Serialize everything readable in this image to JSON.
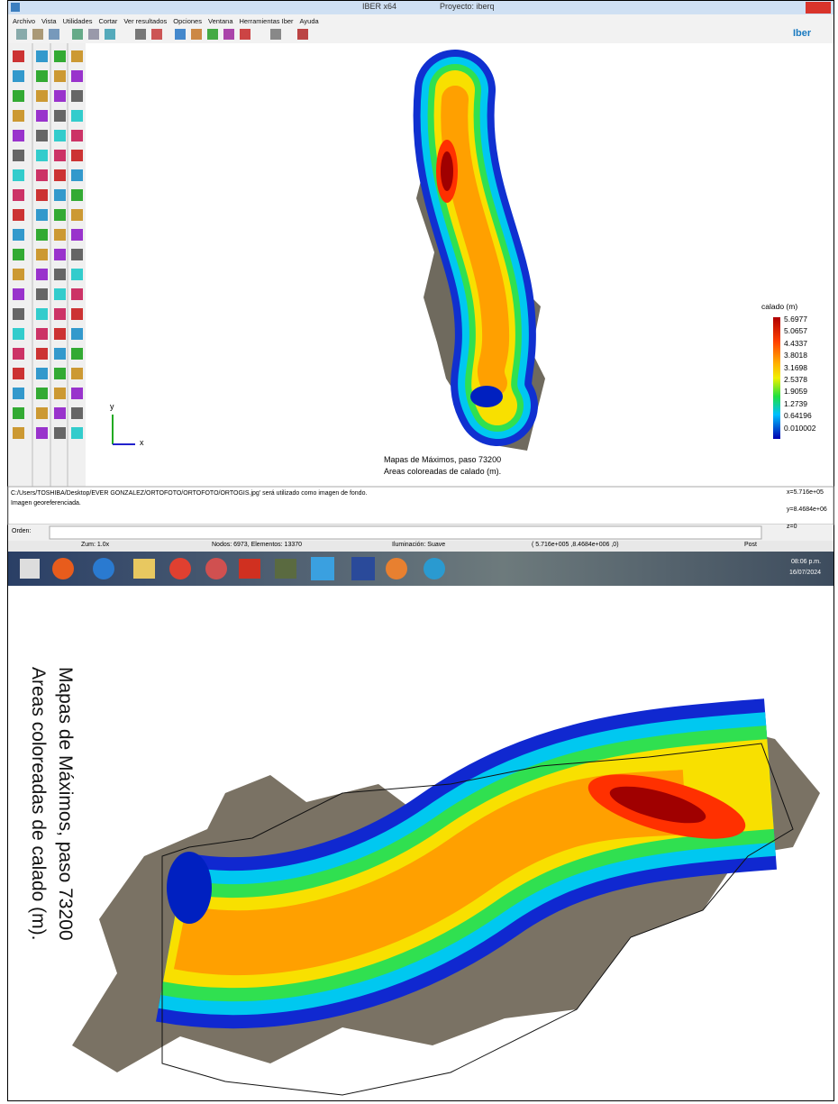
{
  "window": {
    "title": "IBER x64",
    "project": "Proyecto: iberq",
    "logo": "Iber"
  },
  "menu": [
    "Archivo",
    "Vista",
    "Utilidades",
    "Cortar",
    "Ver resultados",
    "Opciones",
    "Ventana",
    "Herramientas Iber",
    "Ayuda"
  ],
  "view": {
    "axis_y": "y",
    "axis_x": "x",
    "caption": [
      "Mapas de Máximos, paso 73200",
      "Areas coloreadas de calado (m)."
    ]
  },
  "legend": {
    "title": "calado (m)",
    "values": [
      "5.6977",
      "5.0657",
      "4.4337",
      "3.8018",
      "3.1698",
      "2.5378",
      "1.9059",
      "1.2739",
      "0.64196",
      "0.010002"
    ]
  },
  "console": [
    "C:/Users/TOSHIBA/Desktop/EVER GONZALEZ/ORTOFOTO/ORTOFOTO/ORTOGIS.jpg' será utilizado como imagen de fondo.",
    "Imagen georeferenciada."
  ],
  "coords": [
    "x=5.716e+05",
    "y=8.4684e+06",
    "z=0"
  ],
  "command_label": "Orden:",
  "status": [
    "Zum: 1.0x",
    "Nodos: 6973, Elementos: 13370",
    "Iluminación: Suave",
    "( 5.716e+005 ,8.4684e+006 ,0)",
    "Post"
  ],
  "clock": {
    "time": "08:06 p.m.",
    "date": "16/07/2024"
  },
  "figure_caption": [
    "Mapas de Máximos, paso 73200",
    "Areas coloreadas de calado (m)."
  ]
}
